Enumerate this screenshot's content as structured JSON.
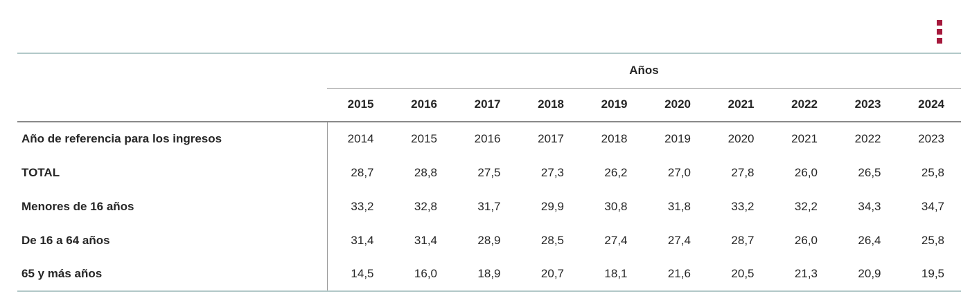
{
  "toolbar": {
    "options_menu_label": "options-menu"
  },
  "colors": {
    "accent_red": "#a5193c",
    "teal_rule": "#b2c8c8",
    "gray_rule": "#8a8a8a",
    "text": "#262626"
  },
  "table": {
    "group_header": "Años",
    "years": [
      "2015",
      "2016",
      "2017",
      "2018",
      "2019",
      "2020",
      "2021",
      "2022",
      "2023",
      "2024"
    ],
    "rows": [
      {
        "label": "Año de referencia para los ingresos",
        "values": [
          "2014",
          "2015",
          "2016",
          "2017",
          "2018",
          "2019",
          "2020",
          "2021",
          "2022",
          "2023"
        ]
      },
      {
        "label": "TOTAL",
        "values": [
          "28,7",
          "28,8",
          "27,5",
          "27,3",
          "26,2",
          "27,0",
          "27,8",
          "26,0",
          "26,5",
          "25,8"
        ]
      },
      {
        "label": "Menores de 16 años",
        "values": [
          "33,2",
          "32,8",
          "31,7",
          "29,9",
          "30,8",
          "31,8",
          "33,2",
          "32,2",
          "34,3",
          "34,7"
        ]
      },
      {
        "label": "De 16 a 64 años",
        "values": [
          "31,4",
          "31,4",
          "28,9",
          "28,5",
          "27,4",
          "27,4",
          "28,7",
          "26,0",
          "26,4",
          "25,8"
        ]
      },
      {
        "label": "65 y más años",
        "values": [
          "14,5",
          "16,0",
          "18,9",
          "20,7",
          "18,1",
          "21,6",
          "20,5",
          "21,3",
          "20,9",
          "19,5"
        ]
      }
    ]
  }
}
